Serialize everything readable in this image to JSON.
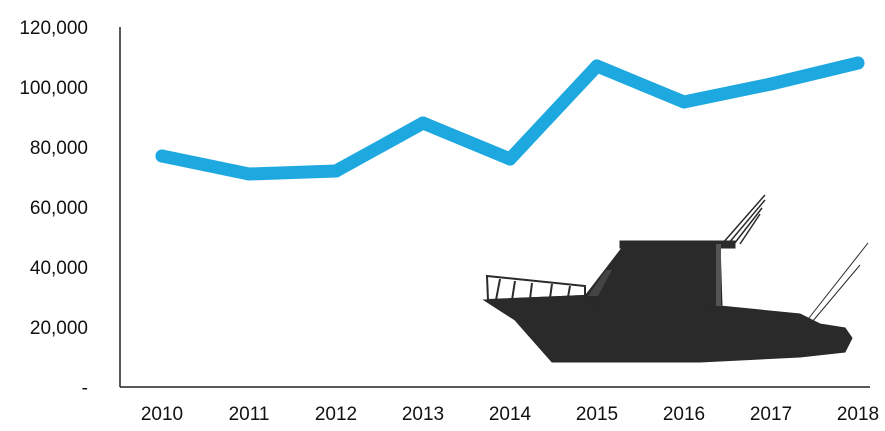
{
  "chart_data": {
    "type": "line",
    "title": "",
    "xlabel": "",
    "ylabel": "",
    "categories": [
      "2010",
      "2011",
      "2012",
      "2013",
      "2014",
      "2015",
      "2016",
      "2017",
      "2018"
    ],
    "series": [
      {
        "values": [
          77000,
          71000,
          72000,
          88000,
          76000,
          107000,
          95000,
          101000,
          108000
        ]
      }
    ],
    "ylim": [
      0,
      120000
    ],
    "yticks": [
      0,
      20000,
      40000,
      60000,
      80000,
      100000,
      120000
    ],
    "ytick_labels": [
      "-",
      "20,000",
      "40,000",
      "60,000",
      "80,000",
      "100,000",
      "120,000"
    ],
    "grid": false,
    "legend": "none",
    "colors": {
      "line": "#1ea8e0",
      "axis": "#222222",
      "boat": "#2a2a2a"
    },
    "icons": [
      "boat-silhouette-icon"
    ]
  }
}
